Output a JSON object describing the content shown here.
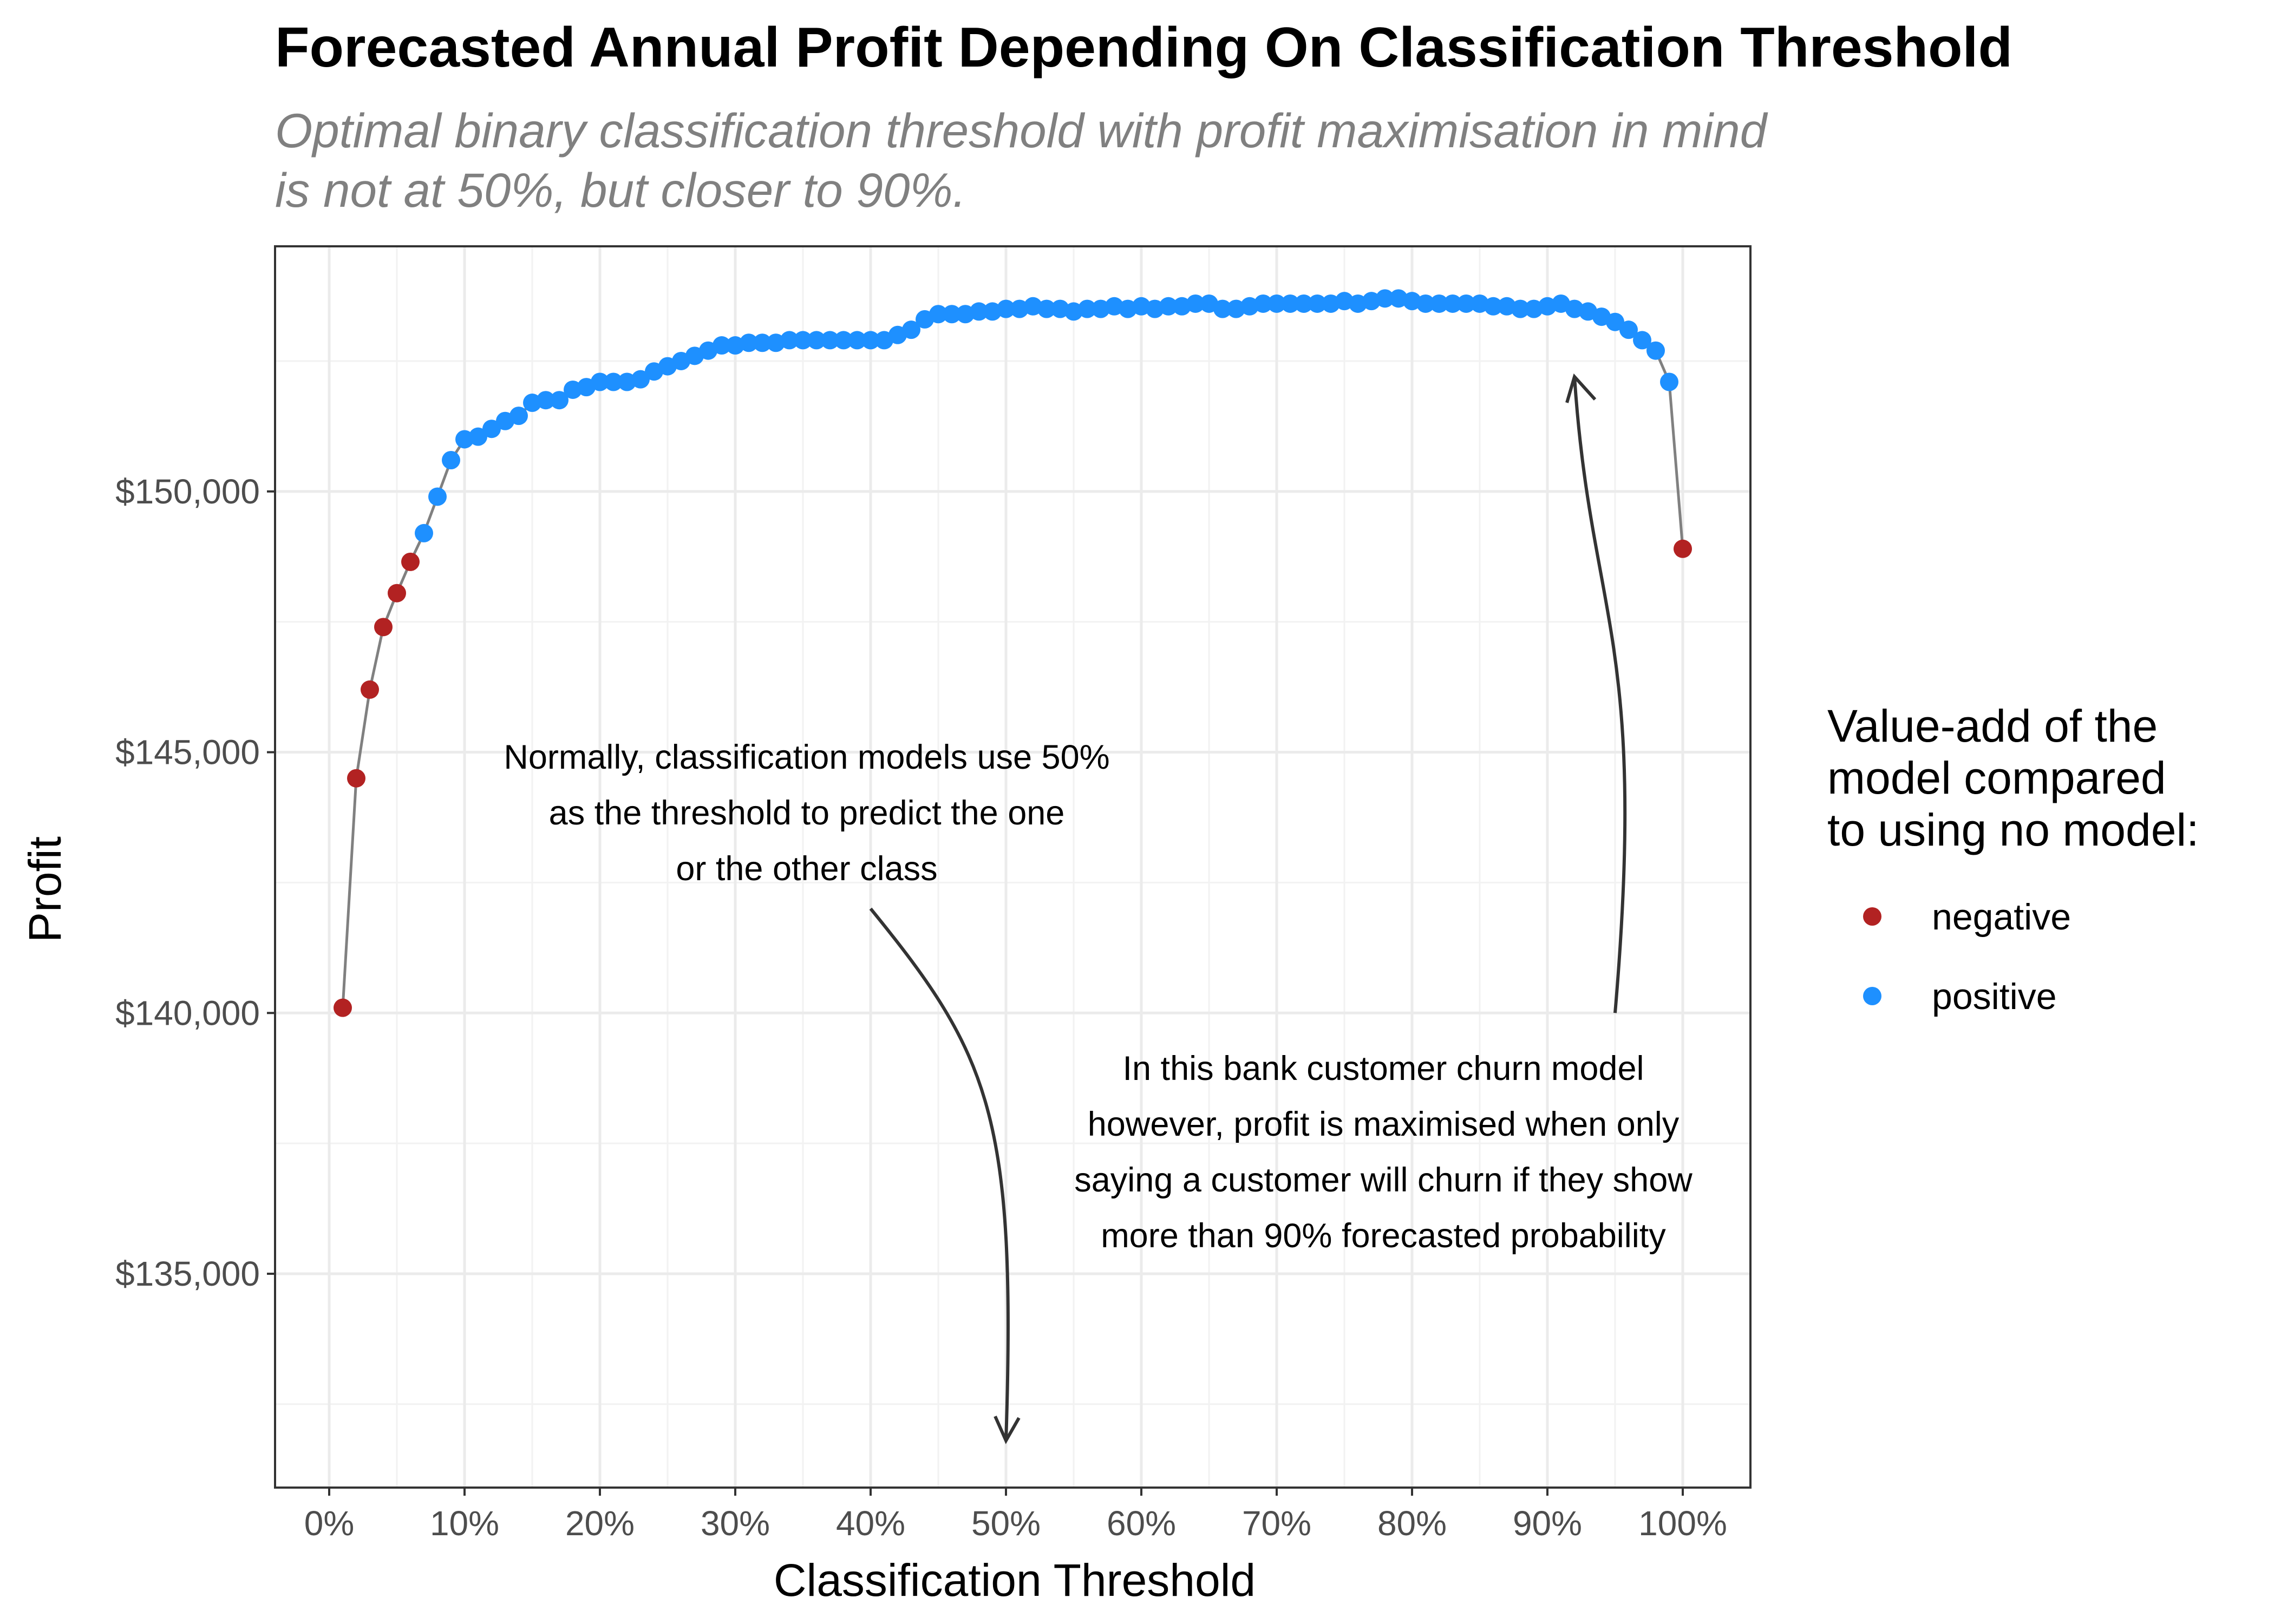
{
  "chart_data": {
    "type": "scatter",
    "title": "Forecasted Annual Profit Depending On Classification Threshold",
    "subtitle": [
      "Optimal binary classification threshold with profit maximisation in mind",
      "is not at 50%, but closer to 90%."
    ],
    "xlabel": "Classification Threshold",
    "ylabel": "Profit",
    "xlim": [
      -0.04,
      1.05
    ],
    "ylim": [
      130900,
      154700
    ],
    "x_ticks": [
      0,
      0.1,
      0.2,
      0.3,
      0.4,
      0.5,
      0.6,
      0.7,
      0.8,
      0.9,
      1.0
    ],
    "x_tick_labels": [
      "0%",
      "10%",
      "20%",
      "30%",
      "40%",
      "50%",
      "60%",
      "70%",
      "80%",
      "90%",
      "100%"
    ],
    "y_ticks": [
      135000,
      140000,
      145000,
      150000
    ],
    "y_tick_labels": [
      "$135,000",
      "$140,000",
      "$145,000",
      "$150,000"
    ],
    "grid": true,
    "series_colors": {
      "negative": "#b22222",
      "positive": "#1e90ff"
    },
    "line_color": "#808080",
    "legend": {
      "title": [
        "Value-add of the",
        "model compared",
        "to using no model:"
      ],
      "entries": [
        "negative",
        "positive"
      ],
      "position": "right"
    },
    "x": [
      0.01,
      0.02,
      0.03,
      0.04,
      0.05,
      0.06,
      0.07,
      0.08,
      0.09,
      0.1,
      0.11,
      0.12,
      0.13,
      0.14,
      0.15,
      0.16,
      0.17,
      0.18,
      0.19,
      0.2,
      0.21,
      0.22,
      0.23,
      0.24,
      0.25,
      0.26,
      0.27,
      0.28,
      0.29,
      0.3,
      0.31,
      0.32,
      0.33,
      0.34,
      0.35,
      0.36,
      0.37,
      0.38,
      0.39,
      0.4,
      0.41,
      0.42,
      0.43,
      0.44,
      0.45,
      0.46,
      0.47,
      0.48,
      0.49,
      0.5,
      0.51,
      0.52,
      0.53,
      0.54,
      0.55,
      0.56,
      0.57,
      0.58,
      0.59,
      0.6,
      0.61,
      0.62,
      0.63,
      0.64,
      0.65,
      0.66,
      0.67,
      0.68,
      0.69,
      0.7,
      0.71,
      0.72,
      0.73,
      0.74,
      0.75,
      0.76,
      0.77,
      0.78,
      0.79,
      0.8,
      0.81,
      0.82,
      0.83,
      0.84,
      0.85,
      0.86,
      0.87,
      0.88,
      0.89,
      0.9,
      0.91,
      0.92,
      0.93,
      0.94,
      0.95,
      0.96,
      0.97,
      0.98,
      0.99,
      1.0
    ],
    "y": [
      140100,
      144500,
      146200,
      147400,
      148050,
      148650,
      149200,
      149900,
      150600,
      151000,
      151050,
      151200,
      151350,
      151450,
      151700,
      151750,
      151750,
      151950,
      152000,
      152100,
      152100,
      152100,
      152150,
      152300,
      152400,
      152500,
      152600,
      152700,
      152800,
      152800,
      152850,
      152850,
      152850,
      152900,
      152900,
      152900,
      152900,
      152900,
      152900,
      152900,
      152900,
      153000,
      153100,
      153300,
      153400,
      153400,
      153400,
      153450,
      153450,
      153500,
      153500,
      153550,
      153500,
      153500,
      153450,
      153500,
      153500,
      153550,
      153500,
      153550,
      153500,
      153550,
      153550,
      153600,
      153600,
      153500,
      153500,
      153550,
      153600,
      153600,
      153600,
      153600,
      153600,
      153600,
      153650,
      153600,
      153650,
      153700,
      153700,
      153650,
      153600,
      153600,
      153600,
      153600,
      153600,
      153550,
      153550,
      153500,
      153500,
      153550,
      153600,
      153500,
      153450,
      153350,
      153250,
      153100,
      152900,
      152700,
      152100,
      148900
    ],
    "value_add": [
      "negative",
      "negative",
      "negative",
      "negative",
      "negative",
      "negative",
      "positive",
      "positive",
      "positive",
      "positive",
      "positive",
      "positive",
      "positive",
      "positive",
      "positive",
      "positive",
      "positive",
      "positive",
      "positive",
      "positive",
      "positive",
      "positive",
      "positive",
      "positive",
      "positive",
      "positive",
      "positive",
      "positive",
      "positive",
      "positive",
      "positive",
      "positive",
      "positive",
      "positive",
      "positive",
      "positive",
      "positive",
      "positive",
      "positive",
      "positive",
      "positive",
      "positive",
      "positive",
      "positive",
      "positive",
      "positive",
      "positive",
      "positive",
      "positive",
      "positive",
      "positive",
      "positive",
      "positive",
      "positive",
      "positive",
      "positive",
      "positive",
      "positive",
      "positive",
      "positive",
      "positive",
      "positive",
      "positive",
      "positive",
      "positive",
      "positive",
      "positive",
      "positive",
      "positive",
      "positive",
      "positive",
      "positive",
      "positive",
      "positive",
      "positive",
      "positive",
      "positive",
      "positive",
      "positive",
      "positive",
      "positive",
      "positive",
      "positive",
      "positive",
      "positive",
      "positive",
      "positive",
      "positive",
      "positive",
      "positive",
      "positive",
      "positive",
      "positive",
      "positive",
      "positive",
      "positive",
      "positive",
      "positive",
      "positive",
      "negative"
    ],
    "annotations": [
      {
        "name": "annotation-left",
        "lines": [
          "Normally, classification models use 50%",
          "as the threshold to predict the one",
          "or the other class"
        ],
        "arrow_from": [
          0.4,
          142000
        ],
        "arrow_to": [
          0.5,
          131800
        ]
      },
      {
        "name": "annotation-right",
        "lines": [
          "In this bank customer churn model",
          "however, profit is maximised when only",
          "saying a customer will churn if they show",
          "more than 90% forecasted probability"
        ],
        "arrow_from": [
          0.95,
          140000
        ],
        "arrow_to": [
          0.92,
          152200
        ]
      }
    ]
  }
}
